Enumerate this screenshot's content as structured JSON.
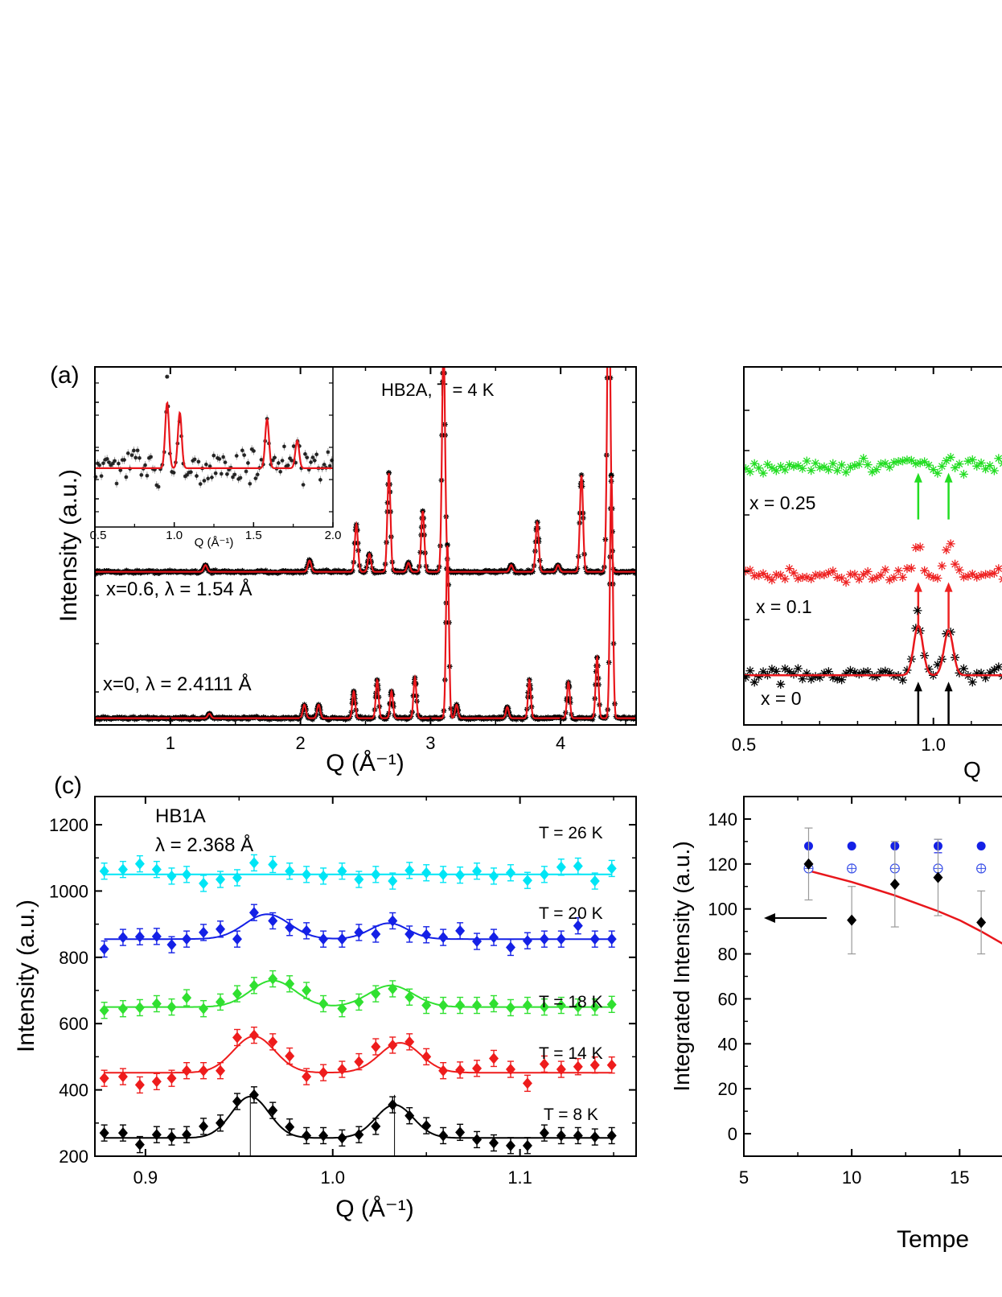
{
  "chart_data": [
    {
      "id": "a",
      "panel_label": "(a)",
      "type": "scatter",
      "title": "HB2A, T = 4 K",
      "xlabel": "Q (Å⁻¹)",
      "ylabel": "Intensity (a.u.)",
      "xlim": [
        0.42,
        4.58
      ],
      "xticks": [
        "1",
        "2",
        "3",
        "4"
      ],
      "xtick_values": [
        1,
        2,
        3,
        4
      ],
      "colors": {
        "data": "#000000",
        "fit": "#e8161b"
      },
      "series": [
        {
          "name": "x=0.6, λ = 1.54 Å",
          "baseline": 0.55,
          "peaks": [
            {
              "q": 1.27,
              "h": 0.03,
              "w": 0.013
            },
            {
              "q": 2.07,
              "h": 0.05,
              "w": 0.013
            },
            {
              "q": 2.43,
              "h": 0.21,
              "w": 0.012
            },
            {
              "q": 2.53,
              "h": 0.08,
              "w": 0.012
            },
            {
              "q": 2.68,
              "h": 0.44,
              "w": 0.012
            },
            {
              "q": 2.83,
              "h": 0.04,
              "w": 0.012
            },
            {
              "q": 2.94,
              "h": 0.27,
              "w": 0.012
            },
            {
              "q": 3.1,
              "h": 1.0,
              "w": 0.012
            },
            {
              "q": 3.62,
              "h": 0.03,
              "w": 0.012
            },
            {
              "q": 3.82,
              "h": 0.22,
              "w": 0.012
            },
            {
              "q": 3.98,
              "h": 0.03,
              "w": 0.012
            },
            {
              "q": 4.16,
              "h": 0.43,
              "w": 0.012
            },
            {
              "q": 4.37,
              "h": 1.42,
              "w": 0.012
            }
          ]
        },
        {
          "name": "x=0, λ = 2.4111 Å",
          "baseline": -0.1,
          "peaks": [
            {
              "q": 1.3,
              "h": 0.02,
              "w": 0.012
            },
            {
              "q": 2.03,
              "h": 0.06,
              "w": 0.012
            },
            {
              "q": 2.14,
              "h": 0.06,
              "w": 0.012
            },
            {
              "q": 2.41,
              "h": 0.12,
              "w": 0.011
            },
            {
              "q": 2.59,
              "h": 0.17,
              "w": 0.011
            },
            {
              "q": 2.7,
              "h": 0.12,
              "w": 0.011
            },
            {
              "q": 2.88,
              "h": 0.18,
              "w": 0.011
            },
            {
              "q": 3.13,
              "h": 0.77,
              "w": 0.011
            },
            {
              "q": 3.2,
              "h": 0.06,
              "w": 0.011
            },
            {
              "q": 3.59,
              "h": 0.05,
              "w": 0.011
            },
            {
              "q": 3.76,
              "h": 0.17,
              "w": 0.011
            },
            {
              "q": 4.06,
              "h": 0.16,
              "w": 0.011
            },
            {
              "q": 4.28,
              "h": 0.27,
              "w": 0.011
            },
            {
              "q": 4.39,
              "h": 1.08,
              "w": 0.011
            }
          ]
        }
      ],
      "inset": {
        "xlabel": "Q (Å⁻¹)",
        "xlim": [
          0.5,
          2.0
        ],
        "xticks": [
          "0.5",
          "1.0",
          "1.5",
          "2.0"
        ],
        "xtick_values": [
          0.5,
          1.0,
          1.5,
          2.0
        ],
        "baseline": 0.0,
        "peaks": [
          {
            "q": 0.955,
            "h": 1.0,
            "w": 0.012
          },
          {
            "q": 1.035,
            "h": 0.85,
            "w": 0.012
          },
          {
            "q": 1.585,
            "h": 0.75,
            "w": 0.012
          },
          {
            "q": 1.775,
            "h": 0.42,
            "w": 0.012
          }
        ]
      }
    },
    {
      "id": "b",
      "type": "scatter",
      "xlabel": "Q",
      "xlim": [
        0.5,
        1.2
      ],
      "xticks": [
        "0.5",
        "1.0"
      ],
      "xtick_values": [
        0.5,
        1.0
      ],
      "series": [
        {
          "name": "x = 0.25",
          "color": "#22dd22",
          "baseline": 2.6,
          "peaks": [
            {
              "q": 0.96,
              "h": 0.05
            },
            {
              "q": 1.04,
              "h": 0.1
            }
          ]
        },
        {
          "name": "x = 0.1",
          "color": "#ee2222",
          "baseline": 1.5,
          "peaks": [
            {
              "q": 0.96,
              "h": 0.3
            },
            {
              "q": 1.04,
              "h": 0.3
            }
          ]
        },
        {
          "name": "x = 0",
          "color": "#000000",
          "fit_color": "#e8161b",
          "baseline": 0.5,
          "peaks": [
            {
              "q": 0.96,
              "h": 0.5
            },
            {
              "q": 1.04,
              "h": 0.45
            }
          ]
        }
      ],
      "arrows_q": [
        0.96,
        1.04
      ]
    },
    {
      "id": "c",
      "panel_label": "(c)",
      "type": "line",
      "title": "HB1A",
      "subtitle": "λ = 2.368 Å",
      "xlabel": "Q (Å⁻¹)",
      "ylabel": "Intensity (a.u.)",
      "xlim": [
        0.873,
        1.162
      ],
      "ylim": [
        200,
        1285
      ],
      "xticks": [
        "0.9",
        "1.0",
        "1.1"
      ],
      "xtick_values": [
        0.9,
        1.0,
        1.1
      ],
      "yticks": [
        "200",
        "400",
        "600",
        "800",
        "1000",
        "1200"
      ],
      "ytick_values": [
        200,
        400,
        600,
        800,
        1000,
        1200
      ],
      "vlines": [
        0.956,
        1.033
      ],
      "x": [
        0.878,
        0.888,
        0.897,
        0.906,
        0.914,
        0.922,
        0.931,
        0.94,
        0.949,
        0.958,
        0.968,
        0.977,
        0.986,
        0.995,
        1.005,
        1.014,
        1.023,
        1.032,
        1.041,
        1.05,
        1.059,
        1.068,
        1.077,
        1.086,
        1.095,
        1.104,
        1.113,
        1.122,
        1.131,
        1.14,
        1.149
      ],
      "series": [
        {
          "name": "T = 26 K",
          "color": "#00e5f5",
          "baseline": 1050,
          "peaks": [],
          "y": [
            1060,
            1065,
            1082,
            1065,
            1045,
            1050,
            1023,
            1035,
            1040,
            1085,
            1080,
            1060,
            1050,
            1045,
            1060,
            1035,
            1050,
            1030,
            1062,
            1055,
            1050,
            1048,
            1060,
            1045,
            1055,
            1032,
            1050,
            1072,
            1075,
            1030,
            1068
          ]
        },
        {
          "name": "T = 20 K",
          "color": "#1420e6",
          "baseline": 855,
          "peaks": [
            {
              "q": 0.965,
              "h": 75,
              "w": 0.012
            },
            {
              "q": 1.03,
              "h": 48,
              "w": 0.01
            }
          ],
          "y": [
            825,
            860,
            862,
            863,
            838,
            855,
            875,
            885,
            855,
            935,
            910,
            890,
            880,
            855,
            855,
            875,
            870,
            910,
            870,
            868,
            860,
            880,
            848,
            860,
            830,
            850,
            855,
            855,
            895,
            855,
            855
          ]
        },
        {
          "name": "T = 18 K",
          "color": "#30e030",
          "baseline": 650,
          "peaks": [
            {
              "q": 0.968,
              "h": 80,
              "w": 0.012
            },
            {
              "q": 1.031,
              "h": 65,
              "w": 0.012
            }
          ],
          "y": [
            640,
            645,
            648,
            660,
            650,
            678,
            645,
            665,
            690,
            715,
            735,
            720,
            700,
            660,
            645,
            665,
            690,
            705,
            680,
            655,
            655,
            655,
            655,
            660,
            648,
            655,
            650,
            655,
            650,
            650,
            658
          ]
        },
        {
          "name": "T = 14 K",
          "color": "#ee1c1c",
          "baseline": 452,
          "peaks": [
            {
              "q": 0.958,
              "h": 110,
              "w": 0.011
            },
            {
              "q": 1.036,
              "h": 90,
              "w": 0.011
            }
          ],
          "y": [
            435,
            440,
            415,
            425,
            435,
            458,
            458,
            458,
            558,
            565,
            545,
            502,
            440,
            452,
            462,
            485,
            530,
            535,
            545,
            500,
            458,
            460,
            465,
            495,
            462,
            420,
            478,
            462,
            470,
            475,
            475
          ]
        },
        {
          "name": "T = 8 K",
          "color": "#000000",
          "baseline": 255,
          "peaks": [
            {
              "q": 0.956,
              "h": 125,
              "w": 0.01
            },
            {
              "q": 1.033,
              "h": 100,
              "w": 0.01
            }
          ],
          "y": [
            270,
            270,
            235,
            265,
            258,
            265,
            290,
            300,
            365,
            385,
            338,
            288,
            262,
            262,
            255,
            265,
            290,
            355,
            322,
            292,
            262,
            272,
            250,
            240,
            232,
            232,
            270,
            262,
            262,
            258,
            262
          ]
        }
      ]
    },
    {
      "id": "d",
      "type": "scatter",
      "xlabel": "Tempe",
      "ylabel": "Integrated Intensity (a.u.)",
      "xlim": [
        5,
        17.3
      ],
      "ylim": [
        -10,
        150
      ],
      "xticks": [
        "5",
        "10",
        "15"
      ],
      "xtick_values": [
        5,
        10,
        15
      ],
      "yticks": [
        "0",
        "20",
        "40",
        "60",
        "80",
        "100",
        "120",
        "140"
      ],
      "ytick_values": [
        0,
        20,
        40,
        60,
        80,
        100,
        120,
        140
      ],
      "series": [
        {
          "name": "blue filled",
          "color": "#1420e6",
          "marker": "circle",
          "x": [
            8,
            10,
            12,
            14,
            16
          ],
          "y": [
            128,
            128,
            128,
            128,
            128
          ],
          "err": [
            0,
            0,
            0,
            3,
            0
          ]
        },
        {
          "name": "blue open",
          "color": "#3a50e8",
          "marker": "open-circle-plus",
          "x": [
            8,
            10,
            12,
            14,
            16
          ],
          "y": [
            118,
            118,
            118,
            118,
            118
          ]
        },
        {
          "name": "black",
          "color": "#000000",
          "marker": "diamond",
          "x": [
            8,
            10,
            12,
            14,
            16
          ],
          "y": [
            120,
            95,
            111,
            114,
            94
          ],
          "err": [
            16,
            15,
            19,
            17,
            14
          ]
        }
      ],
      "fit": {
        "color": "#e8161b",
        "x": [
          8,
          9,
          10,
          11,
          12,
          13,
          14,
          15,
          16,
          17
        ],
        "y": [
          117,
          114.5,
          112,
          109,
          106,
          102.5,
          99,
          95,
          90,
          84.5
        ]
      },
      "arrow_direction": "left"
    }
  ]
}
